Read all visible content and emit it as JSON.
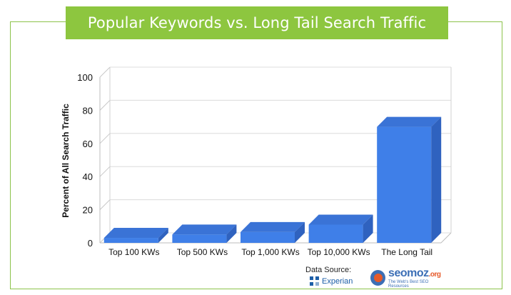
{
  "header": {
    "title": "Popular Keywords vs. Long Tail Search Traffic"
  },
  "chart_data": {
    "type": "bar",
    "title": "Popular Keywords vs. Long Tail Search Traffic",
    "xlabel": "",
    "ylabel": "Percent of All Search Traffic",
    "categories": [
      "Top 100 KWs",
      "Top 500 KWs",
      "Top 1,000 KWs",
      "Top 10,000 KWs",
      "The Long Tail"
    ],
    "values": [
      3,
      5,
      6.5,
      11,
      70
    ],
    "ylim": [
      0,
      100
    ],
    "yticks": [
      0,
      20,
      40,
      60,
      80,
      100
    ],
    "grid": true,
    "legend": "none",
    "bar_color": "#3f7fe8",
    "bar_top_color": "#3a73d6",
    "bar_side_color": "#2f62bf"
  },
  "footer": {
    "source_label": "Data Source:",
    "experian_label": "Experian",
    "seomoz_brand": "seomoz",
    "seomoz_tld": ".org",
    "seomoz_tagline": "The Web's Best SEO Resources"
  }
}
